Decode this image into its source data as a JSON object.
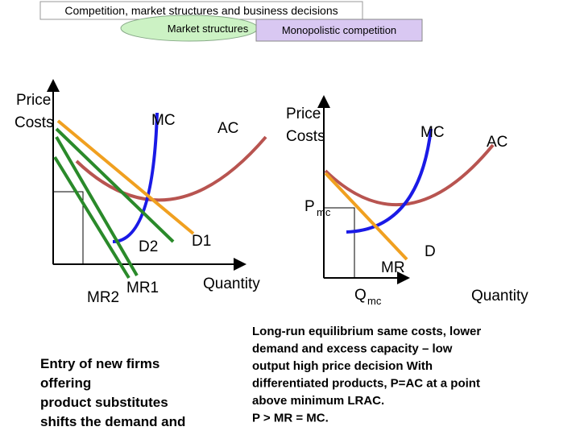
{
  "header": {
    "title": "Competition, market structures and business decisions",
    "tabs": [
      "Market structures",
      "Monopolistic competition"
    ]
  },
  "left_diagram": {
    "y_axis": [
      "Price",
      "Costs"
    ],
    "x_axis": "Quantity",
    "curves": [
      "MC",
      "AC",
      "D2",
      "D1",
      "MR2",
      "MR1"
    ]
  },
  "right_diagram": {
    "y_axis": [
      "Price",
      "Costs"
    ],
    "x_axis": "Quantity",
    "curves": [
      "MC",
      "AC",
      "D",
      "MR"
    ],
    "price_label": {
      "main": "P",
      "sub": "mc"
    },
    "quantity_label": {
      "main": "Q",
      "sub": "mc"
    }
  },
  "left_text": [
    "Entry of new firms",
    "offering",
    "product substitutes",
    "shifts the demand and"
  ],
  "right_text": [
    "Long-run equilibrium same costs, lower",
    "demand and excess capacity – low",
    "output high price decision With",
    "differentiated products, P=AC at a point",
    "above minimum LRAC.",
    "P > MR = MC."
  ]
}
